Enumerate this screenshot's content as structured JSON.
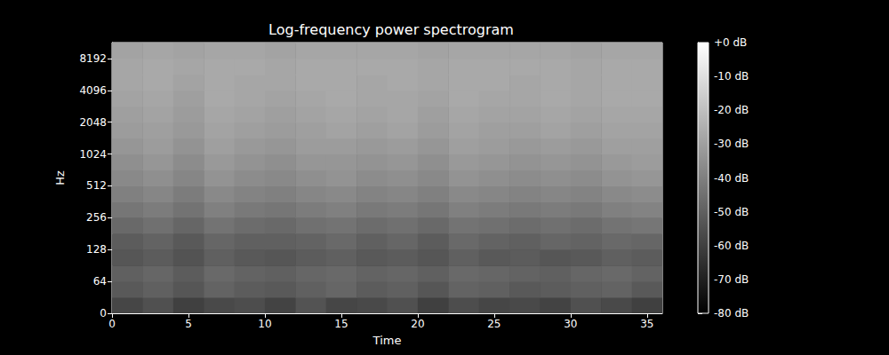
{
  "chart_data": {
    "type": "heatmap",
    "title": "Log-frequency power spectrogram",
    "xlabel": "Time",
    "ylabel": "Hz",
    "xlim": [
      0,
      36
    ],
    "xticks": [
      0,
      5,
      10,
      15,
      20,
      25,
      30,
      35
    ],
    "time_bins": [
      0,
      2,
      4,
      6,
      8,
      10,
      12,
      14,
      16,
      18,
      20,
      22,
      24,
      26,
      28,
      30,
      32,
      34,
      36
    ],
    "categories": [
      "0",
      null,
      "64",
      null,
      "128",
      null,
      "256",
      null,
      "512",
      null,
      "1024",
      null,
      "2048",
      null,
      "4096",
      null,
      "8192",
      null
    ],
    "cells": [
      [
        -58,
        -55,
        -60,
        -57,
        -56,
        -59,
        -54,
        -58,
        -57,
        -55,
        -60,
        -56,
        -58,
        -57,
        -59,
        -55,
        -57,
        -60
      ],
      [
        -52,
        -50,
        -53,
        -49,
        -51,
        -52,
        -50,
        -48,
        -51,
        -50,
        -53,
        -49,
        -50,
        -52,
        -51,
        -50,
        -49,
        -52
      ],
      [
        -50,
        -48,
        -51,
        -47,
        -49,
        -50,
        -48,
        -47,
        -49,
        -48,
        -50,
        -47,
        -48,
        -49,
        -50,
        -48,
        -47,
        -49
      ],
      [
        -53,
        -51,
        -54,
        -50,
        -52,
        -53,
        -51,
        -50,
        -52,
        -51,
        -53,
        -50,
        -52,
        -51,
        -53,
        -52,
        -50,
        -51
      ],
      [
        -51,
        -49,
        -52,
        -48,
        -50,
        -50,
        -49,
        -47,
        -50,
        -48,
        -51,
        -47,
        -49,
        -50,
        -48,
        -49,
        -47,
        -48
      ],
      [
        -47,
        -45,
        -48,
        -44,
        -46,
        -47,
        -45,
        -44,
        -46,
        -45,
        -47,
        -44,
        -45,
        -46,
        -45,
        -46,
        -44,
        -43
      ],
      [
        -43,
        -41,
        -44,
        -40,
        -42,
        -43,
        -41,
        -40,
        -42,
        -41,
        -43,
        -40,
        -41,
        -42,
        -41,
        -42,
        -40,
        -39
      ],
      [
        -40,
        -38,
        -41,
        -37,
        -39,
        -40,
        -38,
        -37,
        -39,
        -38,
        -40,
        -37,
        -38,
        -39,
        -38,
        -39,
        -37,
        -36
      ],
      [
        -37,
        -35,
        -38,
        -34,
        -36,
        -37,
        -35,
        -34,
        -36,
        -35,
        -37,
        -34,
        -35,
        -36,
        -35,
        -36,
        -34,
        -33
      ],
      [
        -35,
        -33,
        -36,
        -32,
        -34,
        -35,
        -33,
        -33,
        -34,
        -33,
        -35,
        -32,
        -33,
        -34,
        -33,
        -34,
        -32,
        -31
      ],
      [
        -33,
        -31,
        -34,
        -30,
        -32,
        -33,
        -31,
        -31,
        -32,
        -31,
        -33,
        -30,
        -31,
        -32,
        -31,
        -32,
        -30,
        -30
      ],
      [
        -31,
        -30,
        -32,
        -29,
        -30,
        -31,
        -30,
        -29,
        -30,
        -29,
        -31,
        -29,
        -30,
        -30,
        -29,
        -30,
        -29,
        -29
      ],
      [
        -30,
        -29,
        -31,
        -28,
        -29,
        -30,
        -29,
        -28,
        -29,
        -28,
        -30,
        -28,
        -29,
        -29,
        -28,
        -29,
        -28,
        -28
      ],
      [
        -29,
        -28,
        -30,
        -27,
        -28,
        -29,
        -28,
        -27,
        -28,
        -28,
        -29,
        -27,
        -28,
        -28,
        -27,
        -28,
        -27,
        -27
      ],
      [
        -28,
        -27,
        -29,
        -27,
        -28,
        -28,
        -27,
        -27,
        -28,
        -27,
        -28,
        -27,
        -27,
        -28,
        -27,
        -28,
        -27,
        -27
      ],
      [
        -28,
        -27,
        -28,
        -27,
        -27,
        -28,
        -27,
        -27,
        -27,
        -27,
        -28,
        -27,
        -27,
        -27,
        -27,
        -28,
        -27,
        -27
      ],
      [
        -29,
        -28,
        -29,
        -28,
        -28,
        -29,
        -28,
        -28,
        -28,
        -28,
        -29,
        -28,
        -28,
        -28,
        -28,
        -29,
        -28,
        -28
      ]
    ],
    "colorbar": {
      "range": [
        -80,
        0
      ],
      "ticks": [
        {
          "value": 0,
          "label": "+0 dB"
        },
        {
          "value": -10,
          "label": "-10 dB"
        },
        {
          "value": -20,
          "label": "-20 dB"
        },
        {
          "value": -30,
          "label": "-30 dB"
        },
        {
          "value": -40,
          "label": "-40 dB"
        },
        {
          "value": -50,
          "label": "-50 dB"
        },
        {
          "value": -60,
          "label": "-60 dB"
        },
        {
          "value": -70,
          "label": "-70 dB"
        },
        {
          "value": -80,
          "label": "-80 dB"
        }
      ]
    }
  }
}
